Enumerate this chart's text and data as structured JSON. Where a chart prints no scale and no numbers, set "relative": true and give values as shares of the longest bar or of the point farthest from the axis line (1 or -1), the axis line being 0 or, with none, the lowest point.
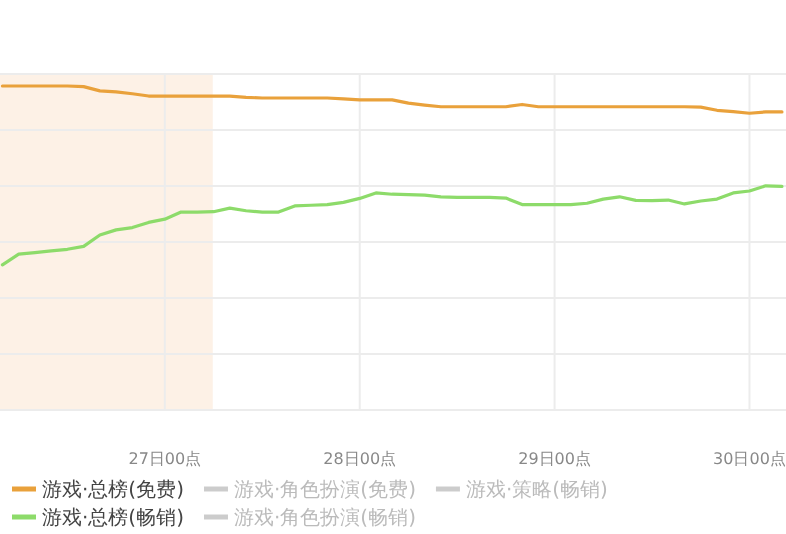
{
  "chart_data": {
    "type": "line",
    "relative": true,
    "grid": true,
    "legend": "bottom",
    "marker": "none",
    "categories": [
      null,
      null,
      null,
      null,
      null,
      null,
      null,
      null,
      null,
      null,
      "27日00点",
      null,
      null,
      null,
      null,
      null,
      null,
      null,
      null,
      null,
      null,
      null,
      "28日00点",
      null,
      null,
      null,
      null,
      null,
      null,
      null,
      null,
      null,
      null,
      null,
      "29日00点",
      null,
      null,
      null,
      null,
      null,
      null,
      null,
      null,
      null,
      null,
      null,
      "30日00点",
      null,
      null
    ],
    "series": [
      {
        "name": "游戏·总榜(免费)",
        "color": "#e9a13b",
        "values": [
          1.0,
          1.0,
          1.0,
          1.0,
          1.0,
          0.998,
          0.985,
          0.982,
          0.976,
          0.969,
          0.969,
          0.969,
          0.969,
          0.969,
          0.969,
          0.965,
          0.963,
          0.963,
          0.963,
          0.963,
          0.963,
          0.96,
          0.957,
          0.957,
          0.957,
          0.947,
          0.941,
          0.936,
          0.936,
          0.936,
          0.936,
          0.936,
          0.943,
          0.936,
          0.936,
          0.936,
          0.936,
          0.936,
          0.936,
          0.936,
          0.936,
          0.936,
          0.936,
          0.935,
          0.925,
          0.921,
          0.916,
          0.92,
          0.92
        ]
      },
      {
        "name": "游戏·角色扮演(免费)",
        "color": "#cccccc",
        "values": [
          null,
          null,
          null,
          null,
          null,
          null,
          null,
          null,
          null,
          null,
          null,
          null,
          null,
          null,
          null,
          null,
          null,
          null,
          null,
          null,
          null,
          null,
          null,
          null,
          null,
          null,
          null,
          null,
          null,
          null,
          null,
          null,
          null,
          null,
          null,
          null,
          null,
          null,
          null,
          null,
          null,
          null,
          null,
          null,
          null,
          null,
          null,
          null,
          null
        ]
      },
      {
        "name": "游戏·策略(畅销)",
        "color": "#cccccc",
        "values": [
          null,
          null,
          null,
          null,
          null,
          null,
          null,
          null,
          null,
          null,
          null,
          null,
          null,
          null,
          null,
          null,
          null,
          null,
          null,
          null,
          null,
          null,
          null,
          null,
          null,
          null,
          null,
          null,
          null,
          null,
          null,
          null,
          null,
          null,
          null,
          null,
          null,
          null,
          null,
          null,
          null,
          null,
          null,
          null,
          null,
          null,
          null,
          null,
          null
        ]
      },
      {
        "name": "游戏·总榜(畅销)",
        "color": "#8ddb6a",
        "values": [
          0.448,
          0.481,
          0.486,
          0.491,
          0.496,
          0.505,
          0.54,
          0.556,
          0.563,
          0.579,
          0.589,
          0.611,
          0.611,
          0.612,
          0.623,
          0.615,
          0.611,
          0.611,
          0.63,
          0.632,
          0.634,
          0.641,
          0.653,
          0.67,
          0.666,
          0.665,
          0.663,
          0.658,
          0.656,
          0.656,
          0.656,
          0.654,
          0.634,
          0.634,
          0.634,
          0.634,
          0.638,
          0.651,
          0.658,
          0.647,
          0.646,
          0.648,
          0.636,
          0.645,
          0.651,
          0.67,
          0.676,
          0.692,
          0.69
        ]
      },
      {
        "name": "游戏·角色扮演(畅销)",
        "color": "#cccccc",
        "values": [
          null,
          null,
          null,
          null,
          null,
          null,
          null,
          null,
          null,
          null,
          null,
          null,
          null,
          null,
          null,
          null,
          null,
          null,
          null,
          null,
          null,
          null,
          null,
          null,
          null,
          null,
          null,
          null,
          null,
          null,
          null,
          null,
          null,
          null,
          null,
          null,
          null,
          null,
          null,
          null,
          null,
          null,
          null,
          null,
          null,
          null,
          null,
          null,
          null
        ]
      }
    ]
  }
}
